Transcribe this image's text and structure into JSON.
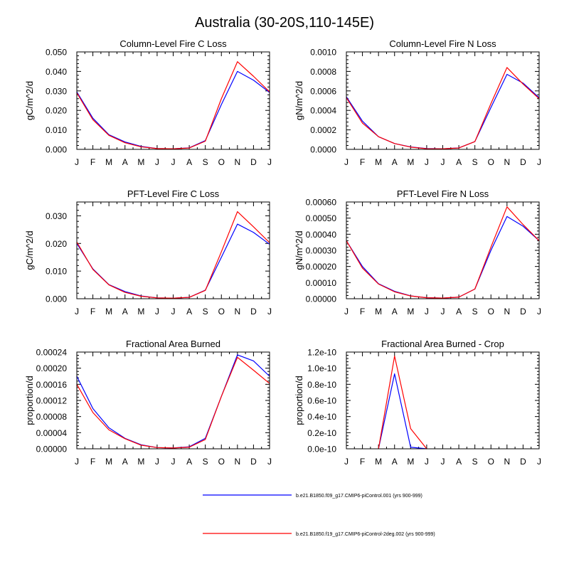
{
  "title": "Australia (30-20S,110-145E)",
  "colors": {
    "series1": "#0000ff",
    "series2": "#ff0000",
    "axis": "#000000"
  },
  "legend": [
    {
      "label": "b.e21.B1850.f09_g17.CMIP6-piControl.001 (yrs 900-999)",
      "color": "#0000ff"
    },
    {
      "label": "b.e21.B1850.f19_g17.CMIP6-piControl-2deg.002 (yrs 900-999)",
      "color": "#ff0000"
    }
  ],
  "chart_data": [
    {
      "type": "line",
      "title": "Column-Level Fire C Loss",
      "xlabel": "",
      "ylabel": "gC/m^2/d",
      "categories": [
        "J",
        "F",
        "M",
        "A",
        "M",
        "J",
        "J",
        "A",
        "S",
        "O",
        "N",
        "D",
        "J"
      ],
      "ylim": [
        0,
        0.05
      ],
      "yticks": [
        0,
        0.01,
        0.02,
        0.03,
        0.04,
        0.05
      ],
      "ytick_labels": [
        "0.000",
        "0.010",
        "0.020",
        "0.030",
        "0.040",
        "0.050"
      ],
      "series": [
        {
          "name": "b.e21.B1850.f09_g17.CMIP6-piControl.001 (yrs 900-999)",
          "values": [
            0.0295,
            0.016,
            0.0075,
            0.0038,
            0.0015,
            0.0004,
            0.0003,
            0.0008,
            0.0045,
            0.023,
            0.04,
            0.0355,
            0.0292
          ]
        },
        {
          "name": "b.e21.B1850.f19_g17.CMIP6-piControl-2deg.002 (yrs 900-999)",
          "values": [
            0.029,
            0.0152,
            0.0072,
            0.0034,
            0.0013,
            0.0004,
            0.0003,
            0.0007,
            0.0042,
            0.026,
            0.045,
            0.0375,
            0.0295
          ]
        }
      ]
    },
    {
      "type": "line",
      "title": "Column-Level Fire N Loss",
      "xlabel": "",
      "ylabel": "gN/m^2/d",
      "categories": [
        "J",
        "F",
        "M",
        "A",
        "M",
        "J",
        "J",
        "A",
        "S",
        "O",
        "N",
        "D",
        "J"
      ],
      "ylim": [
        0,
        0.001
      ],
      "yticks": [
        0,
        0.0002,
        0.0004,
        0.0006,
        0.0008,
        0.001
      ],
      "ytick_labels": [
        "0.0000",
        "0.0002",
        "0.0004",
        "0.0006",
        "0.0008",
        "0.0010"
      ],
      "series": [
        {
          "name": "b.e21.B1850.f09_g17.CMIP6-piControl.001 (yrs 900-999)",
          "values": [
            0.00054,
            0.00029,
            0.00013,
            6e-05,
            2.5e-05,
            8e-06,
            6e-06,
            1.5e-05,
            8e-05,
            0.00043,
            0.00077,
            0.00068,
            0.00053
          ]
        },
        {
          "name": "b.e21.B1850.f19_g17.CMIP6-piControl-2deg.002 (yrs 900-999)",
          "values": [
            0.00053,
            0.00027,
            0.00013,
            6e-05,
            2.3e-05,
            7e-06,
            6e-06,
            1.4e-05,
            8e-05,
            0.00047,
            0.00084,
            0.00067,
            0.00052
          ]
        }
      ]
    },
    {
      "type": "line",
      "title": "PFT-Level Fire C Loss",
      "xlabel": "",
      "ylabel": "gC/m^2/d",
      "categories": [
        "J",
        "F",
        "M",
        "A",
        "M",
        "J",
        "J",
        "A",
        "S",
        "O",
        "N",
        "D",
        "J"
      ],
      "ylim": [
        0,
        0.035
      ],
      "yticks": [
        0,
        0.01,
        0.02,
        0.03
      ],
      "ytick_labels": [
        "0.000",
        "0.010",
        "0.020",
        "0.030"
      ],
      "series": [
        {
          "name": "b.e21.B1850.f09_g17.CMIP6-piControl.001 (yrs 900-999)",
          "values": [
            0.02,
            0.0108,
            0.0051,
            0.0026,
            0.001,
            0.0003,
            0.0002,
            0.0005,
            0.0031,
            0.015,
            0.027,
            0.024,
            0.0197
          ]
        },
        {
          "name": "b.e21.B1850.f19_g17.CMIP6-piControl-2deg.002 (yrs 900-999)",
          "values": [
            0.0205,
            0.0106,
            0.005,
            0.0023,
            0.0009,
            0.0003,
            0.0002,
            0.0005,
            0.003,
            0.017,
            0.0315,
            0.026,
            0.0203
          ]
        }
      ]
    },
    {
      "type": "line",
      "title": "PFT-Level Fire N Loss",
      "xlabel": "",
      "ylabel": "gN/m^2/d",
      "categories": [
        "J",
        "F",
        "M",
        "A",
        "M",
        "J",
        "J",
        "A",
        "S",
        "O",
        "N",
        "D",
        "J"
      ],
      "ylim": [
        0,
        0.0006
      ],
      "yticks": [
        0,
        0.0001,
        0.0002,
        0.0003,
        0.0004,
        0.0005,
        0.0006
      ],
      "ytick_labels": [
        "0.00000",
        "0.00010",
        "0.00020",
        "0.00030",
        "0.00040",
        "0.00050",
        "0.00060"
      ],
      "series": [
        {
          "name": "b.e21.B1850.f09_g17.CMIP6-piControl.001 (yrs 900-999)",
          "values": [
            0.00036,
            0.0002,
            9.3e-05,
            4.6e-05,
            1.8e-05,
            6e-06,
            4e-06,
            1e-05,
            6e-05,
            0.0003,
            0.00051,
            0.00045,
            0.00036
          ]
        },
        {
          "name": "b.e21.B1850.f19_g17.CMIP6-piControl-2deg.002 (yrs 900-999)",
          "values": [
            0.00036,
            0.00019,
            9.1e-05,
            4.3e-05,
            1.7e-05,
            6e-06,
            4e-06,
            1e-05,
            6e-05,
            0.00032,
            0.00057,
            0.00046,
            0.00036
          ]
        }
      ]
    },
    {
      "type": "line",
      "title": "Fractional Area Burned",
      "xlabel": "",
      "ylabel": "proportion/d",
      "categories": [
        "J",
        "F",
        "M",
        "A",
        "M",
        "J",
        "J",
        "A",
        "S",
        "O",
        "N",
        "D",
        "J"
      ],
      "ylim": [
        0,
        0.00024
      ],
      "yticks": [
        0,
        4e-05,
        8e-05,
        0.00012,
        0.00016,
        0.0002,
        0.00024
      ],
      "ytick_labels": [
        "0.00000",
        "0.00004",
        "0.00008",
        "0.00012",
        "0.00016",
        "0.00020",
        "0.00024"
      ],
      "series": [
        {
          "name": "b.e21.B1850.f09_g17.CMIP6-piControl.001 (yrs 900-999)",
          "values": [
            0.00018,
            0.0001,
            5.2e-05,
            2.6e-05,
            1e-05,
            3e-06,
            2e-06,
            5e-06,
            2.6e-05,
            0.00013,
            0.000233,
            0.000218,
            0.00018
          ]
        },
        {
          "name": "b.e21.B1850.f19_g17.CMIP6-piControl-2deg.002 (yrs 900-999)",
          "values": [
            0.00016,
            9e-05,
            4.7e-05,
            2.5e-05,
            9e-06,
            3e-06,
            2e-06,
            4e-06,
            2.3e-05,
            0.00013,
            0.000227,
            0.000195,
            0.000162
          ]
        }
      ]
    },
    {
      "type": "line",
      "title": "Fractional Area Burned - Crop",
      "xlabel": "",
      "ylabel": "proportion/d",
      "categories": [
        "J",
        "F",
        "M",
        "A",
        "M",
        "J",
        "J",
        "A",
        "S",
        "O",
        "N",
        "D",
        "J"
      ],
      "ylim": [
        0,
        1.2e-10
      ],
      "yticks": [
        0,
        2e-11,
        4e-11,
        6e-11,
        8e-11,
        1e-10,
        1.2e-10
      ],
      "ytick_labels": [
        "0.0e-10",
        "0.2e-10",
        "0.4e-10",
        "0.6e-10",
        "0.8e-10",
        "1.0e-10",
        "1.2e-10"
      ],
      "series": [
        {
          "name": "b.e21.B1850.f09_g17.CMIP6-piControl.001 (yrs 900-999)",
          "values": [
            null,
            null,
            0,
            9.3e-11,
            2e-12,
            0,
            null,
            null,
            null,
            null,
            null,
            null,
            null
          ]
        },
        {
          "name": "b.e21.B1850.f19_g17.CMIP6-piControl-2deg.002 (yrs 900-999)",
          "values": [
            null,
            null,
            0,
            1.15e-10,
            2.5e-11,
            0,
            null,
            null,
            null,
            null,
            null,
            null,
            null
          ]
        }
      ]
    }
  ]
}
